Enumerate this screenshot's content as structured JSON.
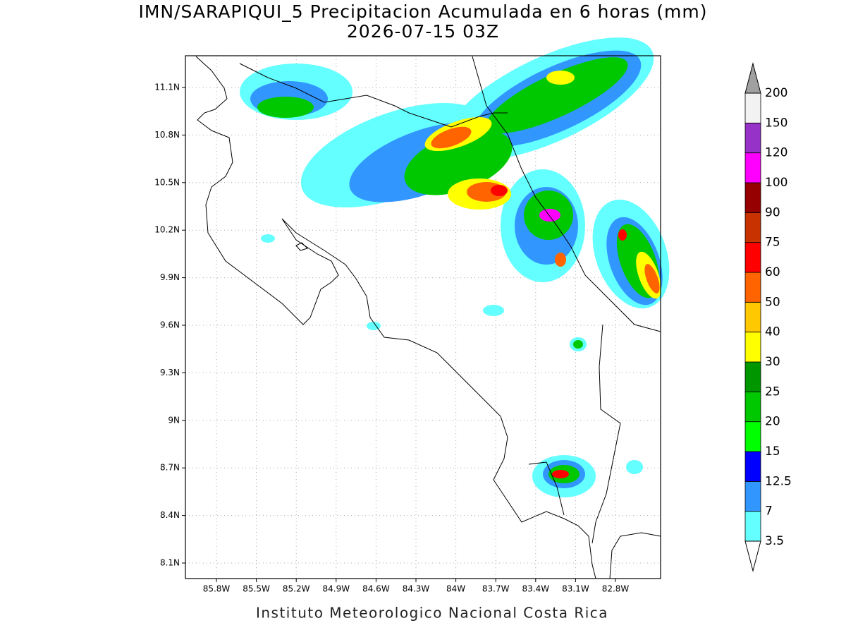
{
  "header": {
    "title": "IMN/SARAPIQUI_5 Precipitacion Acumulada en 6 horas (mm)",
    "subtitle": "2026-07-15 03Z"
  },
  "map": {
    "lat_labels": [
      "11.1N",
      "10.8N",
      "10.5N",
      "10.2N",
      "9.9N",
      "9.6N",
      "9.3N",
      "9N",
      "8.7N",
      "8.4N",
      "8.1N"
    ],
    "lon_labels": [
      "85.8W",
      "85.5W",
      "85.2W",
      "84.9W",
      "84.6W",
      "84.3W",
      "84W",
      "83.7W",
      "83.4W",
      "83.1W",
      "82.8W"
    ]
  },
  "colorbar": {
    "levels": [
      "3.5",
      "7",
      "12.5",
      "15",
      "20",
      "25",
      "30",
      "40",
      "50",
      "60",
      "75",
      "90",
      "100",
      "120",
      "150",
      "200"
    ],
    "colors": [
      "#64ffff",
      "#3296ff",
      "#0000ff",
      "#00ff00",
      "#00c800",
      "#009600",
      "#ffff00",
      "#ffc800",
      "#ff6400",
      "#ff0000",
      "#c83200",
      "#960000",
      "#ff00ff",
      "#9632c8",
      "#f2f2f2"
    ],
    "under_color": "#ffffff",
    "over_color": "#a0a0a0"
  },
  "footer": "Instituto Meteorologico Nacional Costa Rica"
}
